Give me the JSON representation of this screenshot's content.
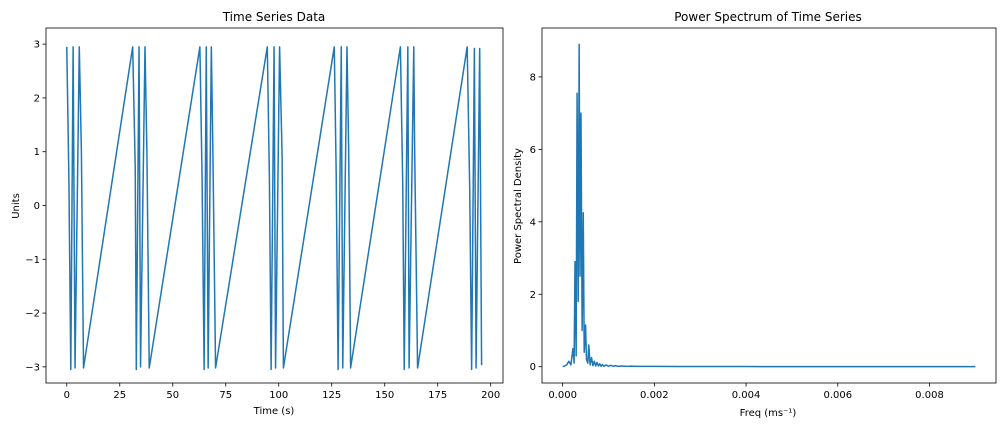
{
  "colors": {
    "line": "#1f77b4",
    "axis": "#000000"
  },
  "chart_data": [
    {
      "type": "line",
      "title": "Time Series Data",
      "xlabel": "Time (s)",
      "ylabel": "Units",
      "xlim": [
        -9.8,
        205.8
      ],
      "ylim": [
        -3.3,
        3.3
      ],
      "xticks": [
        0,
        25,
        50,
        75,
        100,
        125,
        150,
        175,
        200
      ],
      "xtick_labels": [
        "0",
        "25",
        "50",
        "75",
        "100",
        "125",
        "150",
        "175",
        "200"
      ],
      "yticks": [
        -3,
        -2,
        -1,
        0,
        1,
        2,
        3
      ],
      "ytick_labels": [
        "−3",
        "−2",
        "−1",
        "0",
        "1",
        "2",
        "3"
      ],
      "grid": false,
      "series": [
        {
          "x": [
            0,
            1,
            1.9,
            3,
            3.9,
            5.9,
            6.9,
            7.9,
            31.1,
            32.3,
            32.8,
            34.1,
            34.8,
            36.9,
            37.8,
            38.9,
            62.8,
            63.8,
            64.8,
            65.8,
            66.7,
            68.2,
            68.9,
            70.2,
            94.6,
            95.6,
            96.4,
            97.8,
            98.5,
            100.4,
            101.6,
            102.2,
            126.2,
            127.1,
            128.0,
            129.5,
            130.2,
            132.2,
            133.0,
            133.9,
            157.4,
            158.5,
            159.2,
            160.9,
            161.5,
            163.7,
            164.1,
            165.5,
            188.9,
            190.1,
            191.0,
            192.3,
            193.1,
            194.8,
            195.7
          ],
          "y": [
            2.95,
            0.5,
            -3.05,
            2.95,
            -3.02,
            2.95,
            1.0,
            -3.02,
            2.95,
            0.7,
            -3.05,
            2.95,
            -3.0,
            2.95,
            1.0,
            -3.02,
            2.95,
            0.6,
            -3.05,
            2.95,
            -3.02,
            2.95,
            1.1,
            -3.02,
            2.95,
            0.5,
            -3.05,
            2.95,
            -3.02,
            2.95,
            0.9,
            -3.02,
            2.95,
            0.6,
            -3.05,
            2.95,
            -3.02,
            2.95,
            1.0,
            -3.02,
            2.95,
            0.4,
            -3.05,
            2.95,
            -3.02,
            2.95,
            1.1,
            -3.02,
            2.95,
            0.3,
            -3.05,
            2.92,
            -3.02,
            2.92,
            -2.97
          ]
        }
      ]
    },
    {
      "type": "line",
      "title": "Power Spectrum of Time Series",
      "xlabel": "Freq (ms⁻¹)",
      "ylabel": "Power Spectral Density",
      "xlim": [
        -0.00045,
        0.00945
      ],
      "ylim": [
        -0.45,
        9.35
      ],
      "xticks": [
        0,
        0.002,
        0.004,
        0.006,
        0.008
      ],
      "xtick_labels": [
        "0.000",
        "0.002",
        "0.004",
        "0.006",
        "0.008"
      ],
      "yticks": [
        0,
        2,
        4,
        6,
        8
      ],
      "ytick_labels": [
        "0",
        "2",
        "4",
        "6",
        "8"
      ],
      "grid": false,
      "series": [
        {
          "x": [
            0.0,
            4.5e-05,
            9e-05,
            0.000135,
            0.00018,
            0.000225,
            0.00025,
            0.00027,
            0.000295,
            0.000315,
            0.00034,
            0.00036,
            0.00038,
            0.0004,
            0.000425,
            0.00045,
            0.00047,
            0.0005,
            0.00052,
            0.00055,
            0.00057,
            0.0006,
            0.00063,
            0.00066,
            0.00069,
            0.00072,
            0.00075,
            0.00078,
            0.00081,
            0.00084,
            0.00087,
            0.0009,
            0.00095,
            0.001,
            0.00105,
            0.0011,
            0.00115,
            0.0012,
            0.0013,
            0.0014,
            0.0015,
            0.0016,
            0.0018,
            0.002,
            0.0025,
            0.003,
            0.004,
            0.005,
            0.006,
            0.007,
            0.008,
            0.009
          ],
          "y": [
            0.0,
            0.02,
            0.05,
            0.15,
            0.05,
            0.5,
            0.1,
            2.9,
            0.3,
            7.55,
            1.8,
            8.9,
            2.5,
            7.0,
            1.0,
            4.25,
            0.4,
            1.15,
            0.2,
            0.1,
            0.6,
            0.05,
            0.25,
            0.03,
            0.15,
            0.02,
            0.12,
            0.02,
            0.08,
            0.01,
            0.06,
            0.01,
            0.05,
            0.01,
            0.04,
            0.01,
            0.03,
            0.01,
            0.02,
            0.01,
            0.015,
            0.01,
            0.01,
            0.008,
            0.006,
            0.005,
            0.004,
            0.003,
            0.003,
            0.002,
            0.002,
            0.002
          ]
        }
      ]
    }
  ]
}
